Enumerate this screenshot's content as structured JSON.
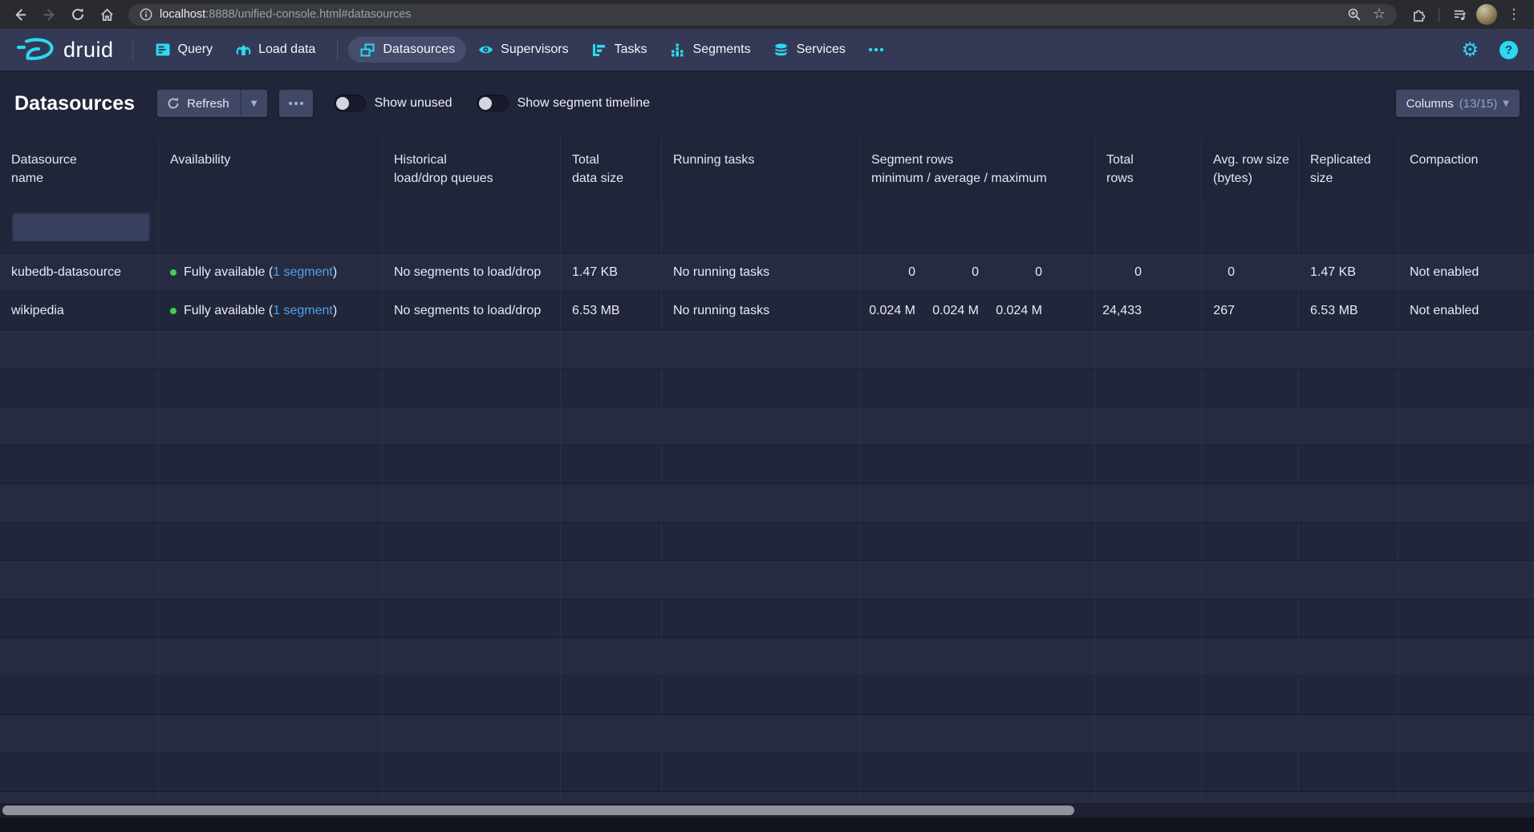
{
  "browser": {
    "url": {
      "host": "localhost",
      "path": ":8888/unified-console.html#datasources"
    }
  },
  "navbar": {
    "brand": "druid",
    "items": [
      {
        "label": "Query",
        "active": false
      },
      {
        "label": "Load data",
        "active": false
      },
      {
        "label": "Datasources",
        "active": true
      },
      {
        "label": "Supervisors",
        "active": false
      },
      {
        "label": "Tasks",
        "active": false
      },
      {
        "label": "Segments",
        "active": false
      },
      {
        "label": "Services",
        "active": false
      }
    ]
  },
  "header": {
    "title": "Datasources",
    "refresh_label": "Refresh",
    "show_unused_label": "Show unused",
    "show_unused_on": false,
    "show_timeline_label": "Show segment timeline",
    "show_timeline_on": false,
    "columns_label": "Columns",
    "columns_count": "(13/15)"
  },
  "table": {
    "filter": {
      "value": "",
      "placeholder": ""
    },
    "columns": [
      {
        "l1": "Datasource",
        "l2": "name"
      },
      {
        "l1": "Availability",
        "l2": ""
      },
      {
        "l1": "Historical",
        "l2": "load/drop queues"
      },
      {
        "l1": "Total",
        "l2": "data size"
      },
      {
        "l1": "Running tasks",
        "l2": ""
      },
      {
        "l1": "Segment rows",
        "l2": "minimum / average / maximum"
      },
      {
        "l1": "Total",
        "l2": "rows"
      },
      {
        "l1": "Avg. row size",
        "l2": "(bytes)"
      },
      {
        "l1": "Replicated",
        "l2": "size"
      },
      {
        "l1": "Compaction",
        "l2": ""
      }
    ],
    "rows": [
      {
        "name": "kubedb-datasource",
        "availability": "Fully available (",
        "availability_link": "1 segment",
        "availability_end": ")",
        "queues": "No segments to load/drop",
        "total_data_size": "1.47 KB",
        "running_tasks": "No running tasks",
        "seg_min": "0",
        "seg_avg": "0",
        "seg_max": "0",
        "total_rows": "0",
        "avg_row_size": "0",
        "replicated_size": "1.47 KB",
        "compaction": "Not enabled"
      },
      {
        "name": "wikipedia",
        "availability": "Fully available (",
        "availability_link": "1 segment",
        "availability_end": ")",
        "queues": "No segments to load/drop",
        "total_data_size": "6.53 MB",
        "running_tasks": "No running tasks",
        "seg_min": "0.024 M",
        "seg_avg": "0.024 M",
        "seg_max": "0.024 M",
        "total_rows": "24,433",
        "avg_row_size": "267",
        "replicated_size": "6.53 MB",
        "compaction": "Not enabled"
      }
    ],
    "empty_row_count": 13
  },
  "icons": {
    "query": "console-lines",
    "load_data": "upload-arrow",
    "datasources": "stacked-windows",
    "supervisors": "eye",
    "tasks": "gantt-chart",
    "segments": "stacked-bars",
    "services": "database",
    "more": "ellipsis",
    "settings": "gear",
    "help": "question-circle",
    "refresh": "circular-arrow",
    "columns": "chevron-down"
  },
  "colors": {
    "accent": "#2bd9f1",
    "bg": "#212539",
    "navbar": "#343a55",
    "chrome": "#2a2b30",
    "pill": "#3a3c42",
    "button": "#414866",
    "rowLight": "#272b42",
    "rowDark": "#22263b",
    "link": "#4da3e8",
    "green": "#3ecf52",
    "gridline": "#2c314a",
    "textMain": "#e8ebf3"
  }
}
